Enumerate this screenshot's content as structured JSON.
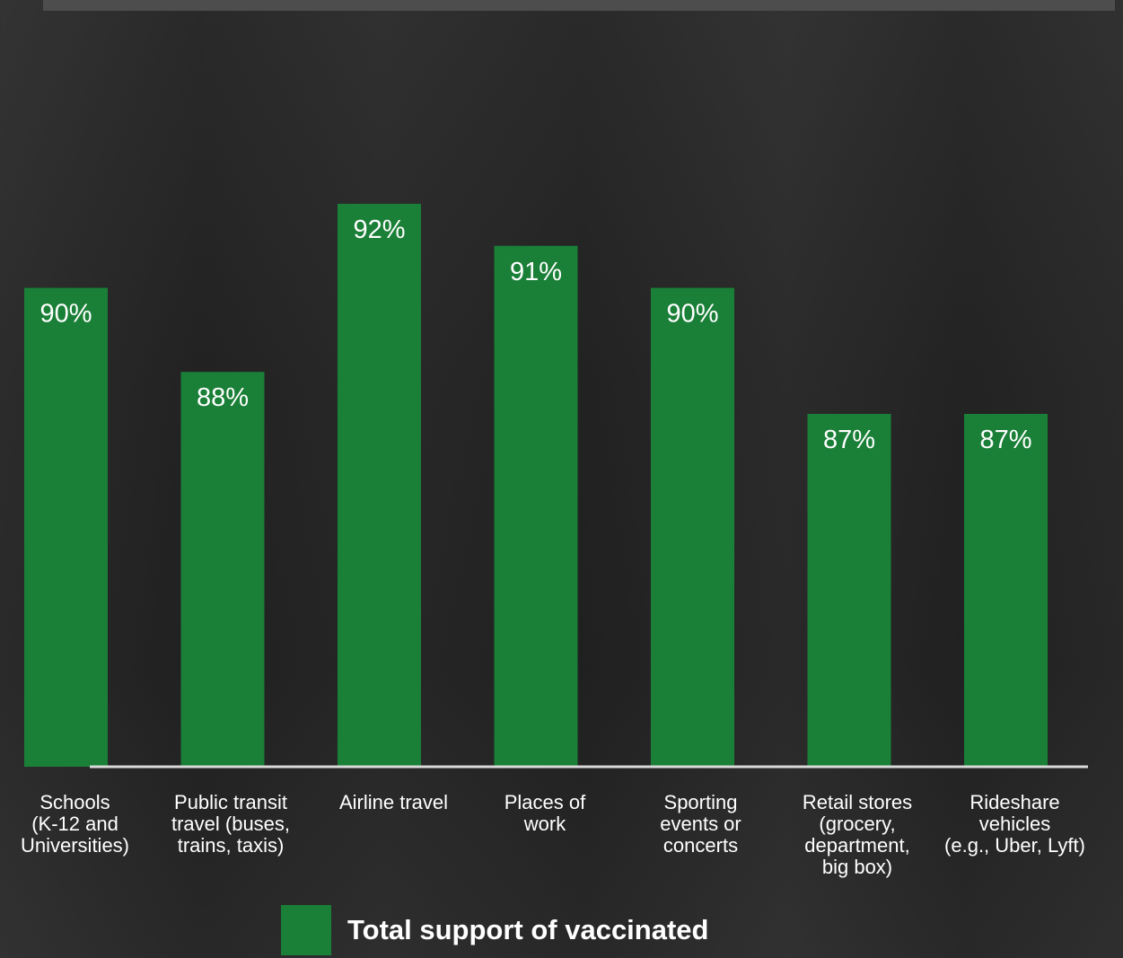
{
  "chart_data": {
    "type": "bar",
    "categories": [
      [
        "Schools",
        "(K-12 and",
        "Universities)"
      ],
      [
        "Public transit",
        "travel (buses,",
        "trains, taxis)"
      ],
      [
        "Airline travel"
      ],
      [
        "Places of",
        "work"
      ],
      [
        "Sporting",
        "events or",
        "concerts"
      ],
      [
        "Retail stores",
        "(grocery,",
        "department,",
        "big box)"
      ],
      [
        "Rideshare",
        "vehicles",
        "(e.g., Uber, Lyft)"
      ]
    ],
    "series": [
      {
        "name": "Total support of vaccinated",
        "values": [
          90,
          88,
          92,
          91,
          90,
          87,
          87
        ],
        "labels": [
          "90%",
          "88%",
          "92%",
          "91%",
          "90%",
          "87%",
          "87%"
        ]
      }
    ],
    "title": "",
    "xlabel": "",
    "ylabel": "",
    "ylim": [
      0,
      92
    ],
    "grid": false,
    "legend": "bottom",
    "colors": {
      "bar": "#1a7f37",
      "baseline": "#d9d9d9",
      "text": "#ffffff"
    }
  }
}
